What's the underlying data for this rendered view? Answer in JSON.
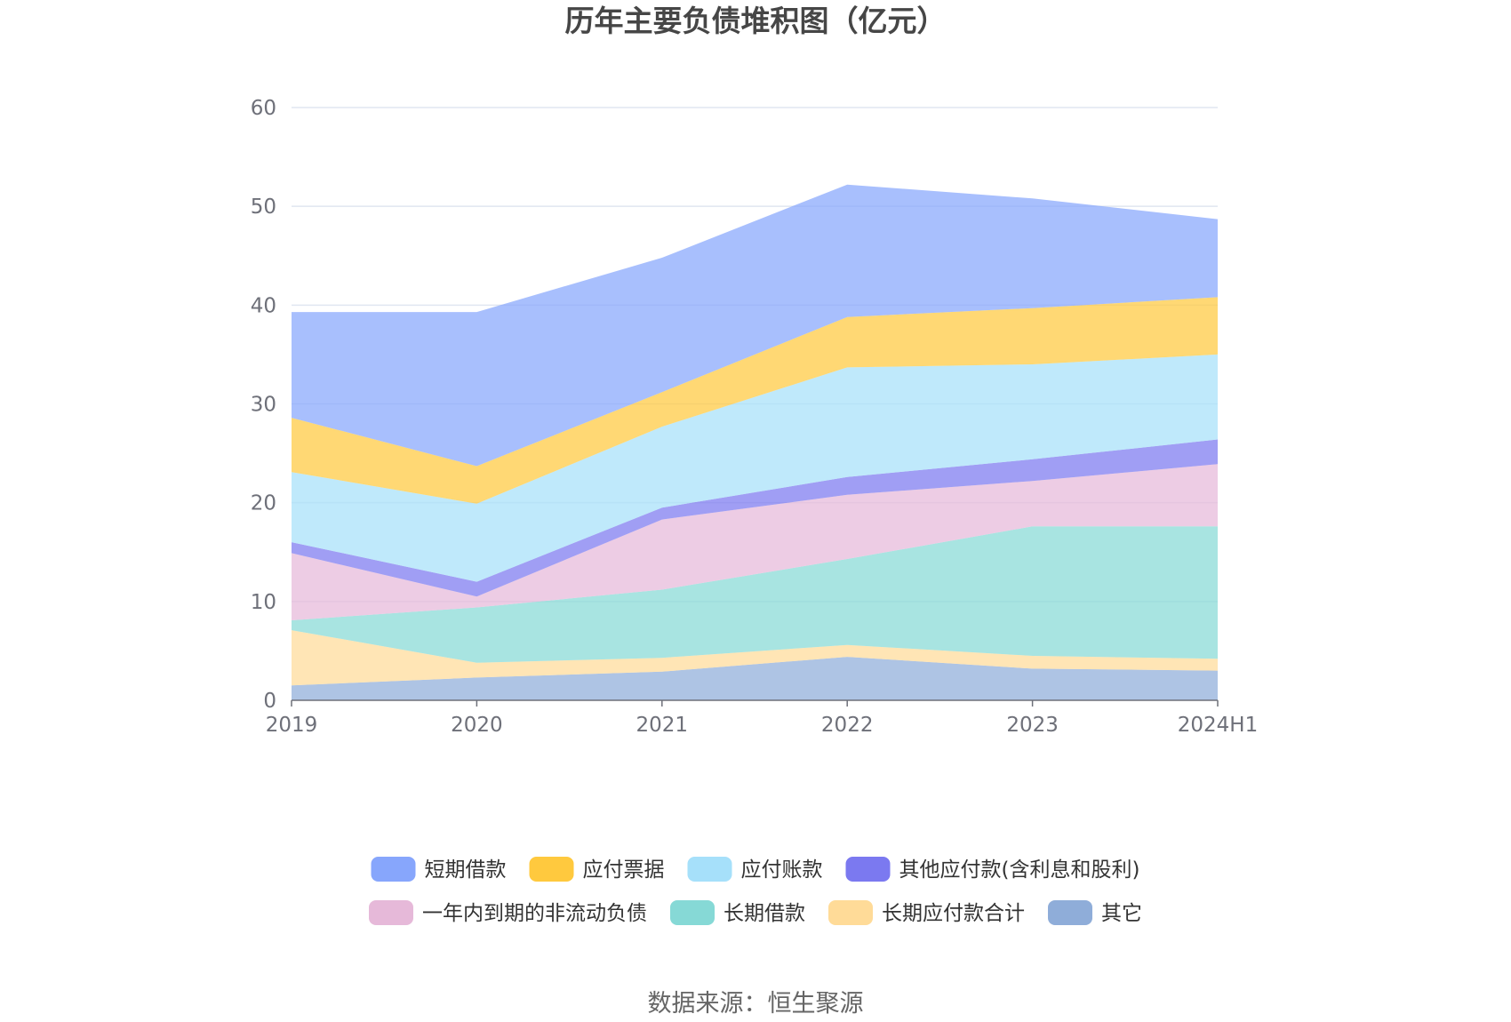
{
  "chart_data": {
    "type": "area",
    "title": "历年主要负债堆积图（亿元）",
    "categories": [
      "2019",
      "2020",
      "2021",
      "2022",
      "2023",
      "2024H1"
    ],
    "yticks": [
      "0",
      "10",
      "20",
      "30",
      "40",
      "50",
      "60"
    ],
    "ylim": [
      0,
      60
    ],
    "grid": true,
    "stacked": true,
    "legend_position": "bottom",
    "series": [
      {
        "name": "其它",
        "color": "#8fadd9",
        "values": [
          1.5,
          2.3,
          2.9,
          4.4,
          3.2,
          3.0
        ]
      },
      {
        "name": "长期应付款合计",
        "color": "#ffdb98",
        "values": [
          5.6,
          1.5,
          1.4,
          1.2,
          1.3,
          1.2
        ]
      },
      {
        "name": "长期借款",
        "color": "#86d9d6",
        "values": [
          1.0,
          5.6,
          6.9,
          8.7,
          13.1,
          13.4
        ]
      },
      {
        "name": "一年内到期的非流动负债",
        "color": "#e6b9d9",
        "values": [
          6.8,
          1.1,
          7.1,
          6.5,
          4.6,
          6.3
        ]
      },
      {
        "name": "其他应付款(含利息和股利)",
        "color": "#7b79f0",
        "values": [
          1.1,
          1.5,
          1.2,
          1.8,
          2.2,
          2.5
        ]
      },
      {
        "name": "应付账款",
        "color": "#a6e0fa",
        "values": [
          7.1,
          7.9,
          8.2,
          11.1,
          9.6,
          8.6
        ]
      },
      {
        "name": "应付票据",
        "color": "#ffc93e",
        "values": [
          5.5,
          3.8,
          3.5,
          5.1,
          5.7,
          5.8
        ]
      },
      {
        "name": "短期借款",
        "color": "#87a6fc",
        "values": [
          10.7,
          15.6,
          13.6,
          13.4,
          11.1,
          7.9
        ]
      }
    ],
    "legend_order": [
      "短期借款",
      "应付票据",
      "应付账款",
      "其他应付款(含利息和股利)",
      "一年内到期的非流动负债",
      "长期借款",
      "长期应付款合计",
      "其它"
    ]
  },
  "source": "数据来源：恒生聚源"
}
